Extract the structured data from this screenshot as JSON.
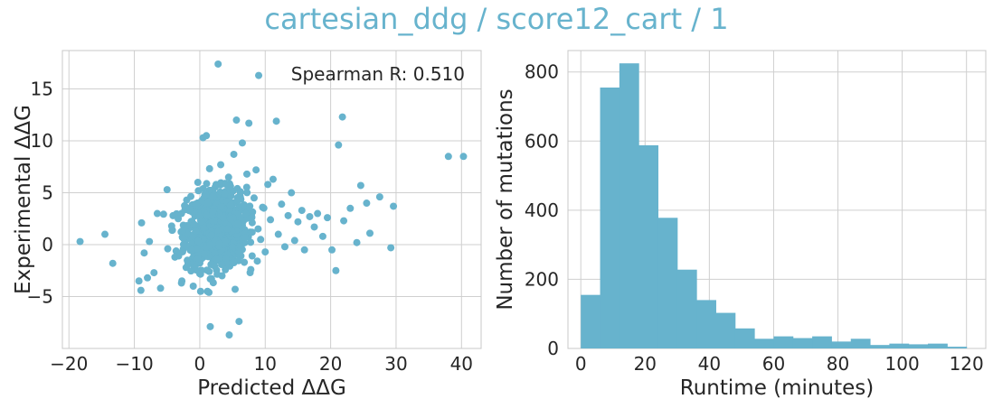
{
  "figure": {
    "title": "cartesian_ddg / score12_cart / 1"
  },
  "colors": {
    "accent": "#67b3cd",
    "grid": "#cfcfcf",
    "text": "#262626"
  },
  "chart_data": [
    {
      "type": "scatter",
      "title": "",
      "xlabel": "Predicted ΔΔG",
      "ylabel": "Experimental ΔΔG",
      "xlim": [
        -21,
        43
      ],
      "ylim": [
        -10,
        18.7
      ],
      "xticks": [
        -20,
        -10,
        0,
        10,
        20,
        30,
        40
      ],
      "yticks": [
        -5,
        0,
        5,
        10,
        15
      ],
      "ytick_labels": [
        "−5",
        "0",
        "5",
        "10",
        "15"
      ],
      "xtick_labels": [
        "−20",
        "−10",
        "0",
        "10",
        "20",
        "30",
        "40"
      ],
      "grid": true,
      "annotation": "Spearman R: 0.510",
      "annotation_position": "top-right",
      "points": [
        [
          -18.3,
          0.3
        ],
        [
          -14.5,
          1.0
        ],
        [
          -13.3,
          -1.8
        ],
        [
          -9.3,
          -3.5
        ],
        [
          -9.0,
          -4.4
        ],
        [
          -8.9,
          2.1
        ],
        [
          -8.5,
          -0.8
        ],
        [
          -8.0,
          -3.2
        ],
        [
          -7.7,
          0.3
        ],
        [
          -7.0,
          -2.7
        ],
        [
          -6.5,
          3.0
        ],
        [
          -6.0,
          -4.2
        ],
        [
          -5.0,
          5.3
        ],
        [
          -4.9,
          -0.4
        ],
        [
          -4.3,
          1.8
        ],
        [
          -3.8,
          -1.2
        ],
        [
          -3.3,
          2.5
        ],
        [
          -2.8,
          -3.7
        ],
        [
          -2.5,
          0.6
        ],
        [
          -2.0,
          4.3
        ],
        [
          -1.8,
          -1.9
        ],
        [
          -1.5,
          3.4
        ],
        [
          -1.2,
          -0.5
        ],
        [
          -1.0,
          -4.0
        ],
        [
          -0.6,
          1.3
        ],
        [
          -0.3,
          6.0
        ],
        [
          0.0,
          -2.8
        ],
        [
          0.2,
          2.2
        ],
        [
          0.5,
          10.3
        ],
        [
          0.7,
          -0.9
        ],
        [
          1.0,
          10.5
        ],
        [
          1.2,
          4.0
        ],
        [
          1.4,
          -4.6
        ],
        [
          1.6,
          -7.9
        ],
        [
          1.8,
          0.9
        ],
        [
          2.0,
          3.2
        ],
        [
          2.3,
          -2.1
        ],
        [
          2.5,
          5.8
        ],
        [
          2.8,
          17.4
        ],
        [
          3.0,
          0.1
        ],
        [
          3.2,
          7.7
        ],
        [
          3.4,
          -3.0
        ],
        [
          3.6,
          2.6
        ],
        [
          3.8,
          4.9
        ],
        [
          4.0,
          -1.3
        ],
        [
          4.2,
          1.5
        ],
        [
          4.4,
          6.5
        ],
        [
          4.5,
          -8.7
        ],
        [
          4.7,
          3.8
        ],
        [
          5.0,
          -0.2
        ],
        [
          5.2,
          8.7
        ],
        [
          5.4,
          -4.3
        ],
        [
          5.6,
          12.0
        ],
        [
          5.8,
          2.0
        ],
        [
          6.0,
          -7.4
        ],
        [
          6.2,
          5.1
        ],
        [
          6.5,
          9.8
        ],
        [
          6.8,
          -1.7
        ],
        [
          7.0,
          3.0
        ],
        [
          7.2,
          6.8
        ],
        [
          7.5,
          11.7
        ],
        [
          7.8,
          -2.4
        ],
        [
          8.0,
          1.2
        ],
        [
          8.3,
          4.5
        ],
        [
          8.6,
          7.2
        ],
        [
          9.0,
          16.3
        ],
        [
          9.3,
          0.5
        ],
        [
          9.6,
          3.6
        ],
        [
          10.0,
          -0.7
        ],
        [
          10.4,
          5.8
        ],
        [
          10.8,
          2.4
        ],
        [
          11.2,
          6.3
        ],
        [
          11.7,
          11.9
        ],
        [
          12.0,
          1.0
        ],
        [
          12.5,
          3.9
        ],
        [
          13.0,
          -0.2
        ],
        [
          13.5,
          2.8
        ],
        [
          14.0,
          5.0
        ],
        [
          14.5,
          0.4
        ],
        [
          15.0,
          2.2
        ],
        [
          15.6,
          3.3
        ],
        [
          16.0,
          -0.5
        ],
        [
          16.8,
          2.7
        ],
        [
          17.5,
          1.7
        ],
        [
          18.0,
          3.0
        ],
        [
          18.8,
          0.8
        ],
        [
          19.5,
          2.6
        ],
        [
          20.2,
          -0.5
        ],
        [
          20.8,
          -2.5
        ],
        [
          21.2,
          9.6
        ],
        [
          21.8,
          12.3
        ],
        [
          22.0,
          2.3
        ],
        [
          23.0,
          3.5
        ],
        [
          24.0,
          0.2
        ],
        [
          24.6,
          5.7
        ],
        [
          25.5,
          4.0
        ],
        [
          26.0,
          1.1
        ],
        [
          27.5,
          4.6
        ],
        [
          29.2,
          -0.3
        ],
        [
          29.6,
          3.7
        ],
        [
          38.0,
          8.5
        ],
        [
          40.3,
          8.5
        ]
      ],
      "dense_cluster": {
        "center": [
          2.5,
          1.5
        ],
        "x_spread": 4.2,
        "y_spread": 2.4,
        "count": 900
      }
    },
    {
      "type": "bar",
      "title": "",
      "xlabel": "Runtime (minutes)",
      "ylabel": "Number of mutations",
      "xlim": [
        -4,
        126
      ],
      "ylim": [
        0,
        862
      ],
      "xticks": [
        0,
        20,
        40,
        60,
        80,
        100,
        120
      ],
      "yticks": [
        0,
        200,
        400,
        600,
        800
      ],
      "grid": true,
      "bin_edges": [
        0,
        6,
        12,
        18,
        24,
        30,
        36,
        42,
        48,
        54,
        60,
        66,
        72,
        78,
        84,
        90,
        96,
        102,
        108,
        114,
        120
      ],
      "values": [
        155,
        755,
        825,
        588,
        378,
        228,
        140,
        103,
        58,
        28,
        35,
        30,
        35,
        20,
        28,
        10,
        14,
        12,
        14,
        5
      ]
    }
  ]
}
